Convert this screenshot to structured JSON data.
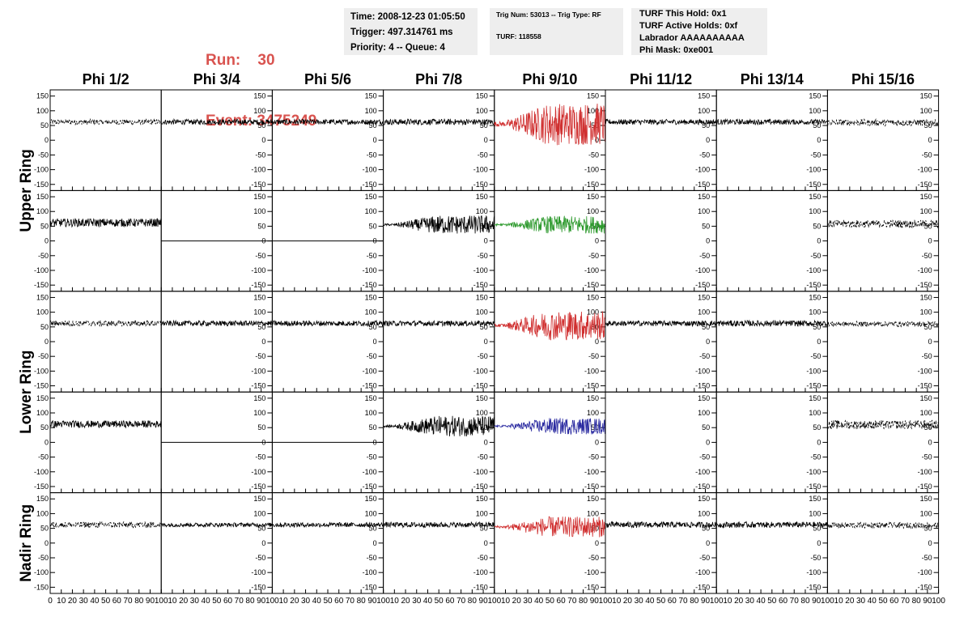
{
  "header": {
    "run_label": "Run:",
    "run_value": "30",
    "event_label": "Event:",
    "event_value": "3475249",
    "time": "Time: 2008-12-23 01:05:50",
    "trigger": "Trigger: 497.314761 ms",
    "priority": "Priority: 4 -- Queue: 4",
    "trig_num": "Trig Num: 53013 -- Trig Type: RF",
    "turf_num": "TURF: 118558",
    "turf_this_hold": "TURF This Hold: 0x1",
    "turf_active_holds": "TURF Active Holds: 0xf",
    "labrador": "Labrador AAAAAAAAAA",
    "phi_mask": "Phi Mask: 0xe001"
  },
  "chart_data": {
    "type": "line",
    "columns": [
      "Phi 1/2",
      "Phi 3/4",
      "Phi 5/6",
      "Phi 7/8",
      "Phi 9/10",
      "Phi 11/12",
      "Phi 13/14",
      "Phi 15/16"
    ],
    "ring_labels": [
      "Upper Ring",
      "Lower Ring",
      "Nadir Ring"
    ],
    "ylim": [
      -160,
      160
    ],
    "xlim": [
      0,
      100
    ],
    "yticks": [
      -150,
      -100,
      -50,
      0,
      50,
      100,
      150
    ],
    "xticks": [
      0,
      10,
      20,
      30,
      40,
      50,
      60,
      70,
      80,
      90,
      100
    ],
    "grid": false,
    "rows": [
      [
        {
          "style": "dashed",
          "color": "#000000",
          "baseline": 62,
          "amplitude": 9
        },
        {
          "style": "solid",
          "color": "#000000",
          "baseline": 62,
          "amplitude": 9
        },
        {
          "style": "solid",
          "color": "#000000",
          "baseline": 62,
          "amplitude": 9
        },
        {
          "style": "solid",
          "color": "#000000",
          "baseline": 62,
          "amplitude": 10
        },
        {
          "style": "solid",
          "color": "#d03030",
          "baseline": 55,
          "amplitude": 72,
          "burst": true
        },
        {
          "style": "solid",
          "color": "#000000",
          "baseline": 62,
          "amplitude": 9
        },
        {
          "style": "solid",
          "color": "#000000",
          "baseline": 62,
          "amplitude": 9
        },
        {
          "style": "dashed",
          "color": "#000000",
          "baseline": 60,
          "amplitude": 11
        }
      ],
      [
        {
          "style": "solid",
          "color": "#000000",
          "baseline": 62,
          "amplitude": 14
        },
        {
          "style": "flat",
          "color": "#000000",
          "baseline": 0,
          "amplitude": 0
        },
        {
          "style": "flat",
          "color": "#000000",
          "baseline": 0,
          "amplitude": 0
        },
        {
          "style": "solid",
          "color": "#000000",
          "baseline": 55,
          "amplitude": 32,
          "burst": true
        },
        {
          "style": "solid",
          "color": "#2e9a2e",
          "baseline": 55,
          "amplitude": 30,
          "burst": true
        },
        {
          "style": "none",
          "color": "#000000",
          "baseline": 0,
          "amplitude": 0
        },
        {
          "style": "none",
          "color": "#000000",
          "baseline": 0,
          "amplitude": 0
        },
        {
          "style": "dashed",
          "color": "#000000",
          "baseline": 58,
          "amplitude": 13
        }
      ],
      [
        {
          "style": "dashed",
          "color": "#000000",
          "baseline": 62,
          "amplitude": 10
        },
        {
          "style": "solid",
          "color": "#000000",
          "baseline": 62,
          "amplitude": 9
        },
        {
          "style": "solid",
          "color": "#000000",
          "baseline": 62,
          "amplitude": 9
        },
        {
          "style": "solid",
          "color": "#000000",
          "baseline": 62,
          "amplitude": 9
        },
        {
          "style": "solid",
          "color": "#d03030",
          "baseline": 55,
          "amplitude": 50,
          "burst": true
        },
        {
          "style": "solid",
          "color": "#000000",
          "baseline": 62,
          "amplitude": 9
        },
        {
          "style": "solid",
          "color": "#000000",
          "baseline": 62,
          "amplitude": 10
        },
        {
          "style": "dashed",
          "color": "#000000",
          "baseline": 60,
          "amplitude": 9
        }
      ],
      [
        {
          "style": "solid",
          "color": "#000000",
          "baseline": 62,
          "amplitude": 12
        },
        {
          "style": "flat",
          "color": "#000000",
          "baseline": 0,
          "amplitude": 0
        },
        {
          "style": "flat",
          "color": "#000000",
          "baseline": 0,
          "amplitude": 0
        },
        {
          "style": "solid",
          "color": "#000000",
          "baseline": 55,
          "amplitude": 35,
          "burst": true
        },
        {
          "style": "solid",
          "color": "#2a2aa0",
          "baseline": 55,
          "amplitude": 28,
          "burst": true
        },
        {
          "style": "none",
          "color": "#000000",
          "baseline": 0,
          "amplitude": 0
        },
        {
          "style": "none",
          "color": "#000000",
          "baseline": 0,
          "amplitude": 0
        },
        {
          "style": "dashed",
          "color": "#000000",
          "baseline": 60,
          "amplitude": 15
        }
      ],
      [
        {
          "style": "dashed",
          "color": "#000000",
          "baseline": 62,
          "amplitude": 10
        },
        {
          "style": "solid",
          "color": "#000000",
          "baseline": 62,
          "amplitude": 7
        },
        {
          "style": "solid",
          "color": "#000000",
          "baseline": 62,
          "amplitude": 8
        },
        {
          "style": "solid",
          "color": "#000000",
          "baseline": 62,
          "amplitude": 9
        },
        {
          "style": "solid",
          "color": "#d03030",
          "baseline": 55,
          "amplitude": 35,
          "burst": true
        },
        {
          "style": "solid",
          "color": "#000000",
          "baseline": 62,
          "amplitude": 10
        },
        {
          "style": "solid",
          "color": "#000000",
          "baseline": 62,
          "amplitude": 10
        },
        {
          "style": "dashed",
          "color": "#000000",
          "baseline": 60,
          "amplitude": 10
        }
      ]
    ]
  }
}
